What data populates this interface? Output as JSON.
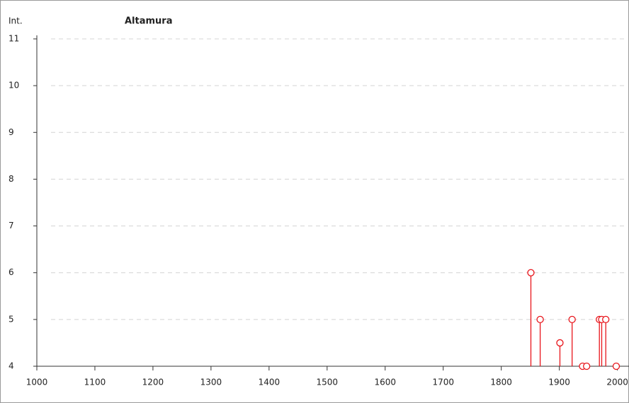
{
  "chart_data": {
    "type": "stem",
    "title": "Altamura",
    "y_label": "Int.",
    "x": [
      1851,
      1867,
      1901,
      1922,
      1940,
      1947,
      1969,
      1973,
      1980,
      1998
    ],
    "values": [
      6,
      5,
      4.5,
      5,
      4,
      4,
      5,
      5,
      5,
      4
    ],
    "color": "#e8151b",
    "xlim": [
      1000,
      2020
    ],
    "xticks": [
      1000,
      1100,
      1200,
      1300,
      1400,
      1500,
      1600,
      1700,
      1800,
      1900,
      2000
    ],
    "ylim": [
      4,
      11
    ],
    "yticks": [
      4,
      5,
      6,
      7,
      8,
      9,
      10,
      11
    ],
    "grid": true
  }
}
